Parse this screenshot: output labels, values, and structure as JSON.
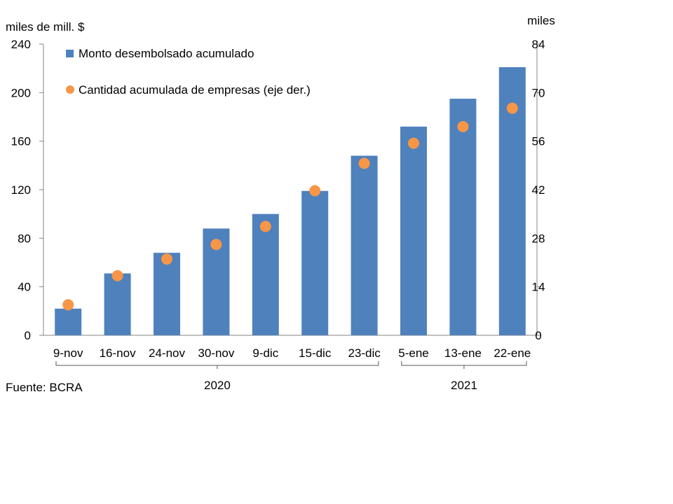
{
  "chart_data": {
    "type": "bar",
    "categories": [
      "9-nov",
      "16-nov",
      "24-nov",
      "30-nov",
      "9-dic",
      "15-dic",
      "23-dic",
      "5-ene",
      "13-ene",
      "22-ene"
    ],
    "series": [
      {
        "name": "Monto desembolsado acumulado",
        "type": "bar",
        "axis": "left",
        "color": "#4f81bd",
        "values": [
          22,
          51,
          68,
          88,
          100,
          119,
          148,
          172,
          195,
          221
        ]
      },
      {
        "name": "Cantidad acumulada de empresas (eje der.)",
        "type": "scatter",
        "axis": "right",
        "color": "#f79646",
        "values": [
          8.8,
          17.2,
          22.0,
          26.2,
          31.4,
          41.7,
          49.6,
          55.4,
          60.2,
          65.5
        ]
      }
    ],
    "ylabel": "miles de mill. $",
    "ylim": [
      0,
      240
    ],
    "yticks": [
      0,
      40,
      80,
      120,
      160,
      200,
      240
    ],
    "y2label": "miles",
    "y2lim": [
      0,
      84
    ],
    "y2ticks": [
      0,
      14,
      28,
      42,
      56,
      70,
      84
    ],
    "year_groups": [
      {
        "label": "2020",
        "from": 0,
        "to": 6
      },
      {
        "label": "2021",
        "from": 7,
        "to": 9
      }
    ],
    "grid": false,
    "legend_position": "top-left"
  },
  "source": "Fuente: BCRA"
}
